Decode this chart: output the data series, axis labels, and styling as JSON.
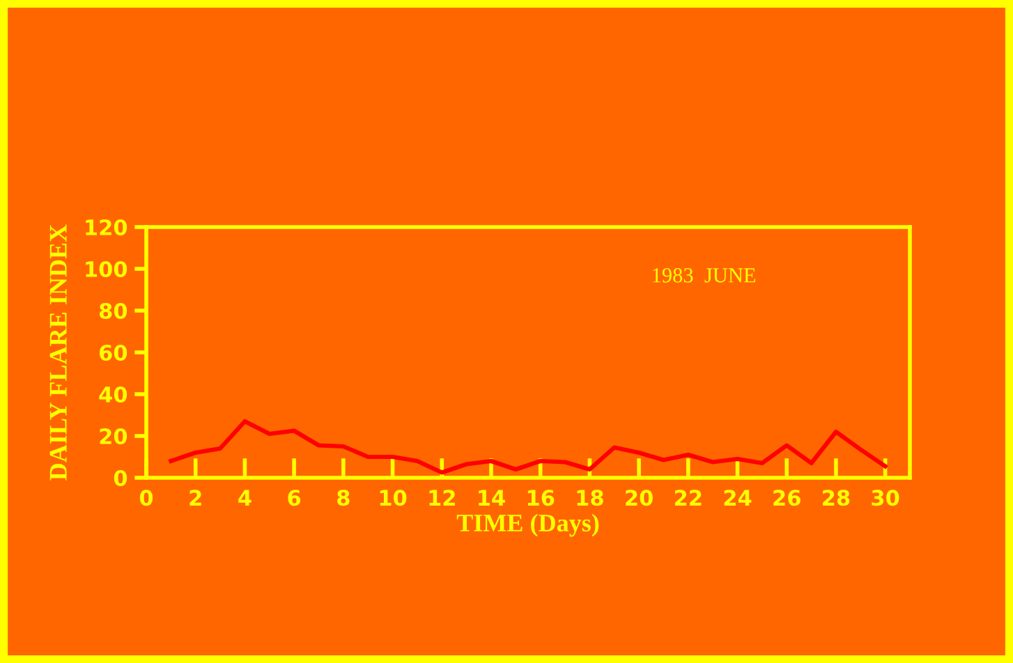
{
  "chart_data": {
    "type": "line",
    "xlabel": "TIME (Days)",
    "ylabel": "DAILY FLARE INDEX",
    "annotations": [
      "1983  JUNE"
    ],
    "x": [
      1,
      2,
      3,
      4,
      5,
      6,
      7,
      8,
      9,
      10,
      11,
      12,
      13,
      14,
      15,
      16,
      17,
      18,
      19,
      20,
      21,
      22,
      23,
      24,
      25,
      26,
      27,
      28,
      29,
      30
    ],
    "series": [
      {
        "color": "#ff0000",
        "values": [
          8,
          12,
          14,
          27,
          21,
          22.5,
          15.5,
          15,
          10,
          10,
          8,
          2.5,
          6.5,
          8,
          4,
          8,
          7.5,
          4,
          14.5,
          12,
          8.5,
          11,
          7.5,
          9,
          7,
          15.5,
          7,
          22,
          13.5,
          5.5
        ]
      }
    ],
    "xlim": [
      0,
      31
    ],
    "xticks": [
      0,
      2,
      4,
      6,
      8,
      10,
      12,
      14,
      16,
      18,
      20,
      22,
      24,
      26,
      28,
      30
    ],
    "ylim": [
      0,
      120
    ],
    "yticks": [
      0,
      20,
      40,
      60,
      80,
      100,
      120
    ],
    "grid": false,
    "legend": false,
    "marker": "none",
    "line_style": "solid"
  }
}
